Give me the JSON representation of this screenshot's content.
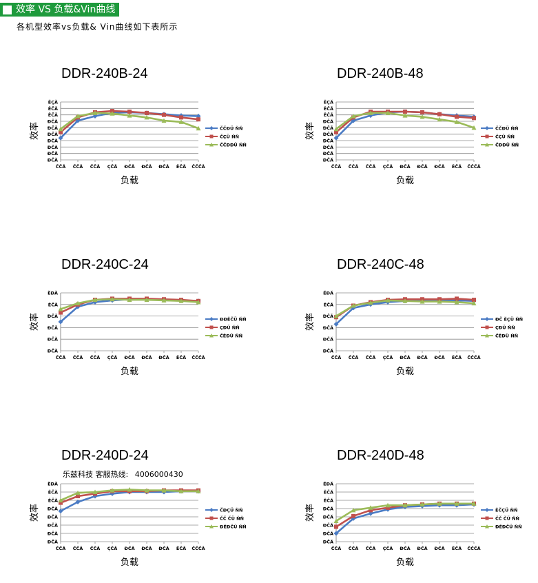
{
  "header": {
    "title": "效率 VS 负载&Vin曲线"
  },
  "subtitle": "各机型效率vs负载& Vin曲线如下表所示",
  "hotline": {
    "label": "乐兹科技 客服热线:",
    "number": "4006000430"
  },
  "colors": {
    "blue": "#4a7bc4",
    "red": "#c0504d",
    "green": "#9bbb59",
    "grid": "#8c8c8c",
    "header_bg": "#1e9a3c"
  },
  "chart_data": [
    {
      "type": "line",
      "title": "DDR-240B-24",
      "ylabel": "效率",
      "xlabel": "负载",
      "y_tick_labels": [
        "ĐČĂ",
        "ĐČĂ",
        "ĐČĂ",
        "ĐČĂ",
        "ĐČĂ",
        "ĐČĂ",
        "ĐČĂ",
        "ĚČĂ",
        "ĚČĂ",
        "ĚÇĂ"
      ],
      "categories": [
        "ČČĂ",
        "ČČĂ",
        "ČČĂ",
        "ÇČĂ",
        "ĐČĂ",
        "ĐČĂ",
        "ĐČĂ",
        "ĚČĂ",
        "ČČČĂ"
      ],
      "ylim": [
        0,
        9
      ],
      "series": [
        {
          "name": "ČČĐÜ ŇŇ",
          "color": "blue",
          "values": [
            3.4,
            6.1,
            6.8,
            7.3,
            7.4,
            7.3,
            7.1,
            6.9,
            6.8
          ]
        },
        {
          "name": "ČÇÜ ŇŇ",
          "color": "red",
          "values": [
            4.3,
            6.6,
            7.4,
            7.6,
            7.5,
            7.3,
            7.0,
            6.6,
            6.3
          ]
        },
        {
          "name": "ČČĐĐÜ ŇŇ",
          "color": "green",
          "values": [
            4.8,
            6.8,
            7.3,
            7.2,
            6.9,
            6.6,
            6.1,
            5.9,
            4.9
          ]
        }
      ],
      "legend_position": "right"
    },
    {
      "type": "line",
      "title": "DDR-240B-48",
      "ylabel": "效率",
      "xlabel": "负载",
      "y_tick_labels": [
        "ĐČĂ",
        "ĐČĂ",
        "ĐČĂ",
        "ĐČĂ",
        "ĐČĂ",
        "ĐČĂ",
        "ĐČĂ",
        "ĚČĂ",
        "ĚČĂ",
        "ĚÇĂ"
      ],
      "categories": [
        "ČČĂ",
        "ČČĂ",
        "ČČĂ",
        "ÇČĂ",
        "ĐČĂ",
        "ĐČĂ",
        "ĐČĂ",
        "ĚČĂ",
        "ČČČĂ"
      ],
      "ylim": [
        0,
        9
      ],
      "series": [
        {
          "name": "ČČĐÜ ŇŇ",
          "color": "blue",
          "values": [
            3.4,
            6.1,
            6.9,
            7.4,
            7.5,
            7.4,
            7.1,
            6.9,
            6.7
          ]
        },
        {
          "name": "ČÇÜ ŇŇ",
          "color": "red",
          "values": [
            4.3,
            6.6,
            7.5,
            7.5,
            7.5,
            7.4,
            7.1,
            6.7,
            6.5
          ]
        },
        {
          "name": "ČĐĐÜ ŇŇ",
          "color": "green",
          "values": [
            4.8,
            6.8,
            7.3,
            7.3,
            6.9,
            6.7,
            6.3,
            5.9,
            5.0
          ]
        }
      ],
      "legend_position": "right"
    },
    {
      "type": "line",
      "title": "DDR-240C-24",
      "ylabel": "效率",
      "xlabel": "负载",
      "y_tick_labels": [
        "ĐČĂ",
        "ĐČĂ",
        "ĐČĂ",
        "ĐČĂ",
        "ĚČĂ",
        "ĚĐĂ"
      ],
      "categories": [
        "ČČĂ",
        "ČČĂ",
        "ČČĂ",
        "ÇČĂ",
        "ĐČĂ",
        "ĐČĂ",
        "ĐČĂ",
        "ĚČĂ",
        "ČČČĂ"
      ],
      "ylim": [
        0,
        5
      ],
      "series": [
        {
          "name": "ĐĐĚČÜ ŇŇ",
          "color": "blue",
          "values": [
            2.5,
            3.8,
            4.2,
            4.35,
            4.45,
            4.45,
            4.4,
            4.35,
            4.3
          ]
        },
        {
          "name": "ÇĐÜ ŇŇ",
          "color": "red",
          "values": [
            3.3,
            4.0,
            4.4,
            4.5,
            4.5,
            4.5,
            4.45,
            4.4,
            4.3
          ]
        },
        {
          "name": "ČĚĐÜ ŇŇ",
          "color": "green",
          "values": [
            3.6,
            4.1,
            4.4,
            4.45,
            4.4,
            4.4,
            4.35,
            4.3,
            4.2
          ]
        }
      ],
      "legend_position": "right"
    },
    {
      "type": "line",
      "title": "DDR-240C-48",
      "ylabel": "效率",
      "xlabel": "负载",
      "y_tick_labels": [
        "ĐČĂ",
        "ĐČĂ",
        "ĐČĂ",
        "ĐČĂ",
        "ĚČĂ",
        "ĚĐĂ"
      ],
      "categories": [
        "ČČĂ",
        "ČČĂ",
        "ČČĂ",
        "ÇČĂ",
        "ĐČĂ",
        "ĐČĂ",
        "ĐČĂ",
        "ĚČĂ",
        "ČČČĂ"
      ],
      "ylim": [
        0,
        5
      ],
      "series": [
        {
          "name": "ĐČ ĚÇÜ ŇŇ",
          "color": "blue",
          "values": [
            2.3,
            3.7,
            4.0,
            4.2,
            4.3,
            4.3,
            4.35,
            4.35,
            4.3
          ]
        },
        {
          "name": "ÇĐÜ ŇŇ",
          "color": "red",
          "values": [
            2.9,
            3.9,
            4.2,
            4.4,
            4.45,
            4.45,
            4.45,
            4.5,
            4.4
          ]
        },
        {
          "name": "ČĚĐÜ ŇŇ",
          "color": "green",
          "values": [
            3.0,
            3.9,
            4.15,
            4.35,
            4.3,
            4.25,
            4.25,
            4.2,
            4.1
          ]
        }
      ],
      "legend_position": "right"
    },
    {
      "type": "line",
      "title": "DDR-240D-24",
      "ylabel": "效率",
      "xlabel": "负载",
      "y_tick_labels": [
        "ĐČĂ",
        "ĐČĂ",
        "ĐČĂ",
        "ĐČĂ",
        "ĐČĂ",
        "ĚČĂ",
        "ĚČĂ",
        "ĚĐĂ"
      ],
      "categories": [
        "ČČĂ",
        "ČČĂ",
        "ČČĂ",
        "ÇČĂ",
        "ĐČĂ",
        "ĐČĂ",
        "ĐČĂ",
        "ĚČĂ",
        "ČČČĂ"
      ],
      "ylim": [
        0,
        7
      ],
      "series": [
        {
          "name": "ČĐÇÜ ŇŇ",
          "color": "blue",
          "values": [
            3.7,
            4.8,
            5.5,
            5.8,
            6.0,
            6.0,
            6.0,
            6.1,
            6.1
          ]
        },
        {
          "name": "ČČ ČÜ ŇŇ",
          "color": "red",
          "values": [
            4.7,
            5.5,
            5.8,
            6.1,
            6.1,
            6.1,
            6.2,
            6.2,
            6.2
          ]
        },
        {
          "name": "ĐĚĐČÜ ŇŇ",
          "color": "green",
          "values": [
            5.0,
            5.9,
            6.0,
            6.2,
            6.3,
            6.2,
            6.2,
            6.1,
            6.1
          ]
        }
      ],
      "legend_position": "right"
    },
    {
      "type": "line",
      "title": "DDR-240D-48",
      "ylabel": "效率",
      "xlabel": "负载",
      "y_tick_labels": [
        "ĐČĂ",
        "ĐČĂ",
        "ĐČĂ",
        "ĐČĂ",
        "ĐČĂ",
        "ĚČĂ",
        "ĚČĂ",
        "ĚĐĂ"
      ],
      "categories": [
        "ČČĂ",
        "ČČĂ",
        "ČČĂ",
        "ÇČĂ",
        "ĐČĂ",
        "ĐČĂ",
        "ĐČĂ",
        "ĚČĂ",
        "ČČČĂ"
      ],
      "ylim": [
        0,
        7
      ],
      "series": [
        {
          "name": "ĚČÇÜ ŇŇ",
          "color": "blue",
          "values": [
            1.0,
            2.8,
            3.4,
            3.9,
            4.2,
            4.3,
            4.4,
            4.4,
            4.5
          ]
        },
        {
          "name": "ČČ ČÜ ŇŇ",
          "color": "red",
          "values": [
            1.8,
            3.1,
            3.8,
            4.1,
            4.4,
            4.5,
            4.6,
            4.6,
            4.6
          ]
        },
        {
          "name": "ĐĚĐČÜ ŇŇ",
          "color": "green",
          "values": [
            2.5,
            3.8,
            4.1,
            4.4,
            4.4,
            4.5,
            4.6,
            4.6,
            4.6
          ]
        }
      ],
      "legend_position": "right"
    }
  ]
}
